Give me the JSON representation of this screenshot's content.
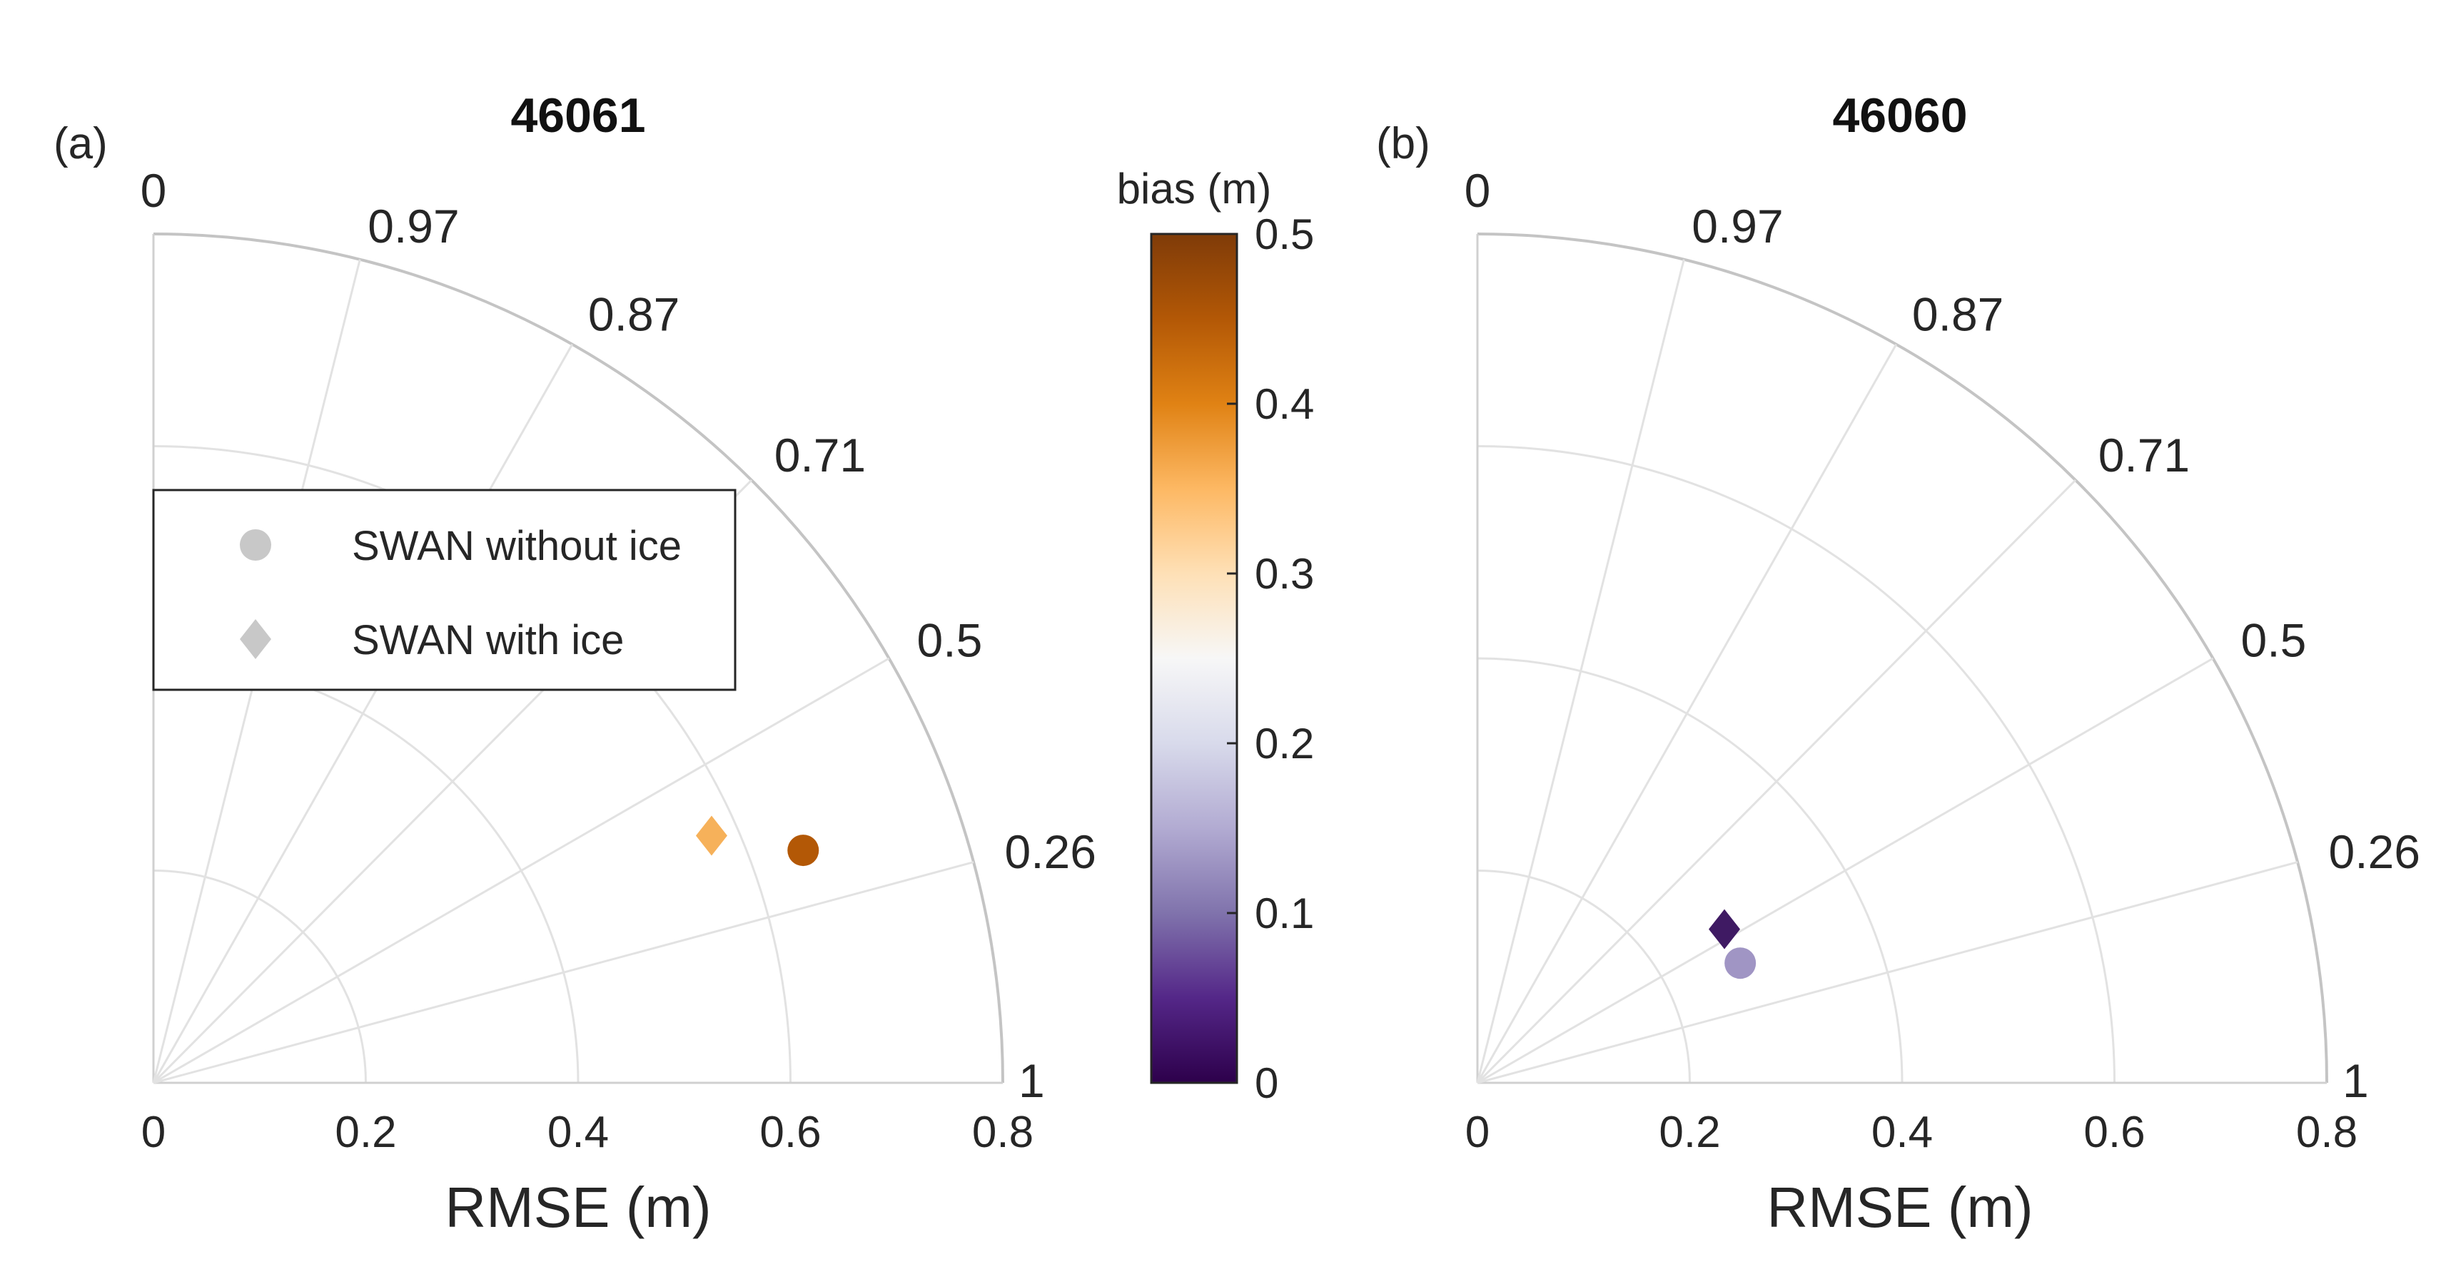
{
  "chart_data": [
    {
      "type": "scatter",
      "subtype": "taylor-diagram",
      "panel_label": "(a)",
      "title": "46061",
      "xlabel": "RMSE (m)",
      "xlim": [
        0,
        0.8
      ],
      "radial_ticks": [
        "0",
        "0.2",
        "0.4",
        "0.6",
        "0.8"
      ],
      "radial_tick_values": [
        0,
        0.2,
        0.4,
        0.6,
        0.8
      ],
      "correlation_ticks": [
        "0",
        "0.26",
        "0.5",
        "0.71",
        "0.87",
        "0.97",
        "1"
      ],
      "correlation_values": [
        0,
        0.26,
        0.5,
        0.71,
        0.87,
        0.97,
        1
      ],
      "points": [
        {
          "name": "SWAN without ice",
          "marker": "circle",
          "r": 0.65,
          "angle_deg": 19.7,
          "bias": 0.46,
          "color": "#b35806"
        },
        {
          "name": "SWAN with ice",
          "marker": "diamond",
          "r": 0.575,
          "angle_deg": 23.9,
          "bias": 0.33,
          "color": "#f6b15a"
        }
      ]
    },
    {
      "type": "scatter",
      "subtype": "taylor-diagram",
      "panel_label": "(b)",
      "title": "46060",
      "xlabel": "RMSE (m)",
      "xlim": [
        0,
        0.8
      ],
      "radial_ticks": [
        "0",
        "0.2",
        "0.4",
        "0.6",
        "0.8"
      ],
      "radial_tick_values": [
        0,
        0.2,
        0.4,
        0.6,
        0.8
      ],
      "correlation_ticks": [
        "0",
        "0.26",
        "0.5",
        "0.71",
        "0.87",
        "0.97",
        "1"
      ],
      "correlation_values": [
        0,
        0.26,
        0.5,
        0.71,
        0.87,
        0.97,
        1
      ],
      "points": [
        {
          "name": "SWAN with ice",
          "marker": "diamond",
          "r": 0.274,
          "angle_deg": 31.9,
          "bias": 0.02,
          "color": "#3f1a63"
        },
        {
          "name": "SWAN without ice",
          "marker": "circle",
          "r": 0.272,
          "angle_deg": 24.5,
          "bias": 0.15,
          "color": "#a095c4"
        }
      ]
    }
  ],
  "legend": {
    "items": [
      {
        "label": "SWAN without ice",
        "marker": "circle",
        "color": "#c8c8c8"
      },
      {
        "label": "SWAN with ice",
        "marker": "diamond",
        "color": "#c8c8c8"
      }
    ]
  },
  "colorbar": {
    "title": "bias (m)",
    "range": [
      0,
      0.5
    ],
    "tick_values": [
      0,
      0.1,
      0.2,
      0.3,
      0.4,
      0.5
    ],
    "tick_labels": [
      "0",
      "0.1",
      "0.2",
      "0.3",
      "0.4",
      "0.5"
    ],
    "colors": [
      "#2d004b",
      "#542788",
      "#8073ac",
      "#b2abd2",
      "#d8daeb",
      "#f7f7f7",
      "#fee0b6",
      "#fdb863",
      "#e08214",
      "#b35806",
      "#7f3b08"
    ]
  }
}
